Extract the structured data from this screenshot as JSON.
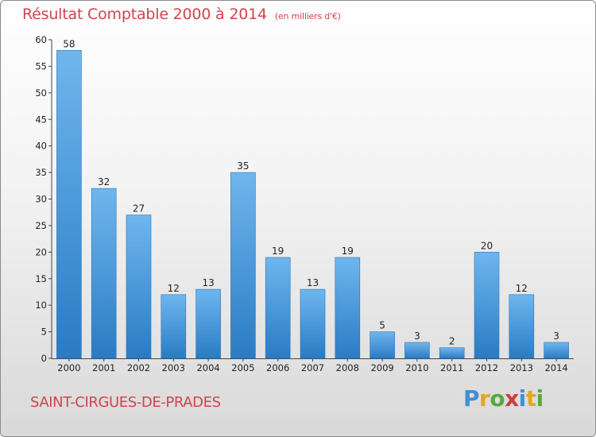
{
  "header": {
    "title": "Résultat Comptable 2000 à 2014",
    "unit": "(en milliers d'€)"
  },
  "commune": "SAINT-CIRGUES-DE-PRADES",
  "logo": {
    "text": "Proxiti",
    "letters": [
      "P",
      "r",
      "o",
      "x",
      "i",
      "t",
      "i"
    ]
  },
  "colors": {
    "title": "#d1444e",
    "bar_light": "#6fb6ee",
    "bar_dark": "#2e7fc7"
  },
  "chart_data": {
    "type": "bar",
    "title": "Résultat Comptable 2000 à 2014",
    "subtitle": "(en milliers d'€)",
    "categories": [
      "2000",
      "2001",
      "2002",
      "2003",
      "2004",
      "2005",
      "2006",
      "2007",
      "2008",
      "2009",
      "2010",
      "2011",
      "2012",
      "2013",
      "2014"
    ],
    "values": [
      58,
      32,
      27,
      12,
      13,
      35,
      19,
      13,
      19,
      5,
      3,
      2,
      20,
      12,
      3
    ],
    "ylim": [
      0,
      60
    ],
    "yticks": [
      0,
      5,
      10,
      15,
      20,
      25,
      30,
      35,
      40,
      45,
      50,
      55,
      60
    ],
    "grid": false,
    "legend": "none"
  }
}
